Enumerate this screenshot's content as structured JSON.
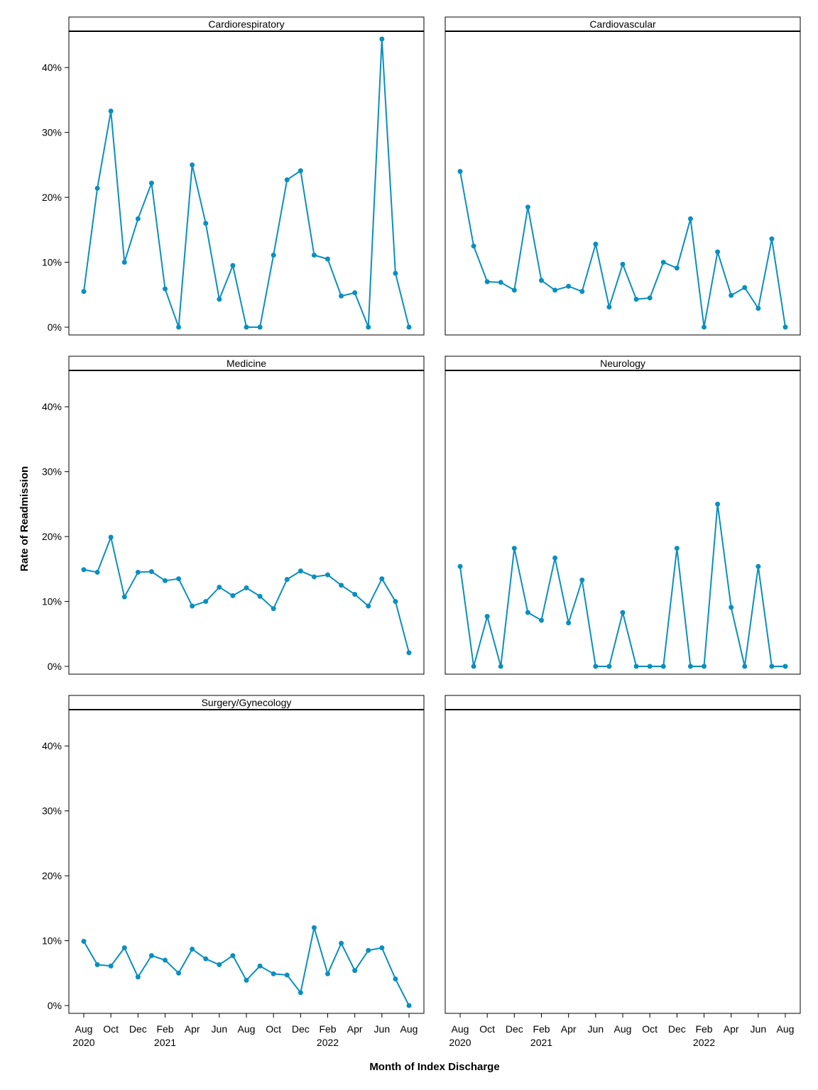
{
  "chart_data": {
    "type": "line",
    "layout": "facet-grid 3x2",
    "xlabel": "Month of Index Discharge",
    "ylabel": "Rate of Readmission",
    "ylim": [
      -0.012,
      0.456
    ],
    "y_ticks": [
      0,
      0.1,
      0.2,
      0.3,
      0.4
    ],
    "y_tick_labels": [
      "0%",
      "10%",
      "20%",
      "30%",
      "40%"
    ],
    "x_months": [
      "2020-08",
      "2020-09",
      "2020-10",
      "2020-11",
      "2020-12",
      "2021-01",
      "2021-02",
      "2021-03",
      "2021-04",
      "2021-05",
      "2021-06",
      "2021-07",
      "2021-08",
      "2021-09",
      "2021-10",
      "2021-11",
      "2021-12",
      "2022-01",
      "2022-02",
      "2022-03",
      "2022-04",
      "2022-05",
      "2022-06",
      "2022-07",
      "2022-08"
    ],
    "x_tick_months": [
      "2020-08",
      "2020-10",
      "2020-12",
      "2021-02",
      "2021-04",
      "2021-06",
      "2021-08",
      "2021-10",
      "2021-12",
      "2022-02",
      "2022-04",
      "2022-06",
      "2022-08"
    ],
    "x_tick_labels": [
      "Aug",
      "Oct",
      "Dec",
      "Feb",
      "Apr",
      "Jun",
      "Aug",
      "Oct",
      "Dec",
      "Feb",
      "Apr",
      "Jun",
      "Aug"
    ],
    "x_year_labels": [
      {
        "month": "2020-08",
        "label": "2020"
      },
      {
        "month": "2021-02",
        "label": "2021"
      },
      {
        "month": "2022-02",
        "label": "2022"
      }
    ],
    "line_color": "#0a8fbf",
    "grid": false,
    "panels": [
      {
        "title": "Cardiorespiratory",
        "values": [
          0.055,
          0.214,
          0.333,
          0.1,
          0.167,
          0.222,
          0.059,
          0,
          0.25,
          0.16,
          0.043,
          0.095,
          0,
          0,
          0.111,
          0.227,
          0.241,
          0.111,
          0.105,
          0.048,
          0.053,
          0,
          0.444,
          0.083,
          0
        ]
      },
      {
        "title": "Cardiovascular",
        "values": [
          0.24,
          0.125,
          0.07,
          0.069,
          0.057,
          0.185,
          0.072,
          0.057,
          0.063,
          0.055,
          0.128,
          0.031,
          0.097,
          0.043,
          0.045,
          0.1,
          0.091,
          0.167,
          0,
          0.116,
          0.049,
          0.061,
          0.029,
          0.136,
          0
        ]
      },
      {
        "title": "Medicine",
        "values": [
          0.149,
          0.145,
          0.199,
          0.107,
          0.145,
          0.146,
          0.132,
          0.135,
          0.093,
          0.1,
          0.122,
          0.109,
          0.121,
          0.108,
          0.089,
          0.134,
          0.147,
          0.138,
          0.141,
          0.125,
          0.111,
          0.093,
          0.135,
          0.1,
          0.021
        ]
      },
      {
        "title": "Neurology",
        "values": [
          0.154,
          0,
          0.077,
          0,
          0.182,
          0.083,
          0.071,
          0.167,
          0.067,
          0.133,
          0,
          0,
          0.083,
          0,
          0,
          0,
          0.182,
          0,
          0,
          0.25,
          0.091,
          0,
          0.154,
          0,
          0
        ]
      },
      {
        "title": "Surgery/Gynecology",
        "values": [
          0.099,
          0.063,
          0.061,
          0.089,
          0.044,
          0.077,
          0.07,
          0.05,
          0.087,
          0.072,
          0.063,
          0.077,
          0.039,
          0.061,
          0.049,
          0.047,
          0.02,
          0.12,
          0.049,
          0.096,
          0.054,
          0.085,
          0.089,
          0.041,
          0
        ]
      },
      {
        "title": "",
        "values": []
      }
    ]
  }
}
